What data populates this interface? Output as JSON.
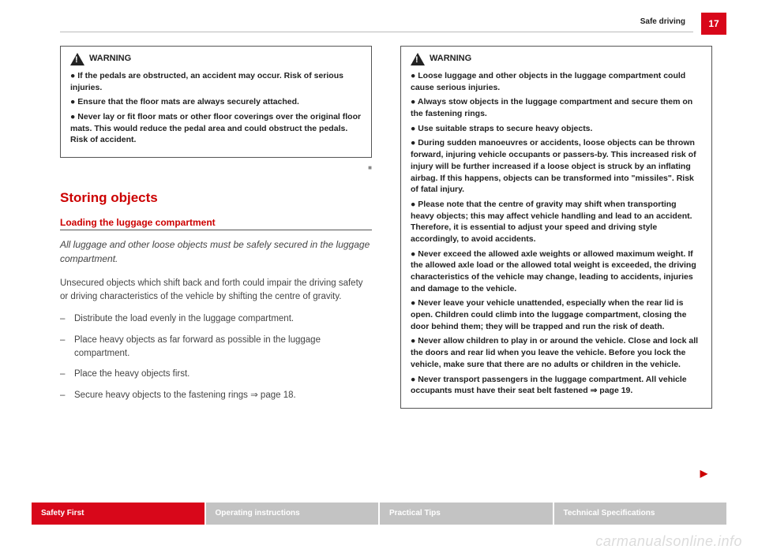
{
  "header": {
    "section": "Safe driving",
    "page": "17"
  },
  "leftColumn": {
    "warning": {
      "label": "WARNING",
      "bullets": [
        "If the pedals are obstructed, an accident may occur. Risk of serious injuries.",
        "Ensure that the floor mats are always securely attached.",
        "Never lay or fit floor mats or other floor coverings over the original floor mats. This would reduce the pedal area and could obstruct the pedals. Risk of accident."
      ]
    },
    "sectionTitle": "Storing objects",
    "subTitle": "Loading the luggage compartment",
    "intro": "All luggage and other loose objects must be safely secured in the luggage compartment.",
    "bodyText": "Unsecured objects which shift back and forth could impair the driving safety or driving characteristics of the vehicle by shifting the centre of gravity.",
    "dashes": [
      "Distribute the load evenly in the luggage compartment.",
      "Place heavy objects as far forward as possible in the luggage compartment.",
      "Place the heavy objects first.",
      "Secure heavy objects to the fastening rings ⇒ page 18."
    ]
  },
  "rightColumn": {
    "warning": {
      "label": "WARNING",
      "bullets": [
        "Loose luggage and other objects in the luggage compartment could cause serious injuries.",
        "Always stow objects in the luggage compartment and secure them on the fastening rings.",
        "Use suitable straps to secure heavy objects.",
        "During sudden manoeuvres or accidents, loose objects can be thrown forward, injuring vehicle occupants or passers-by. This increased risk of injury will be further increased if a loose object is struck by an inflating airbag. If this happens, objects can be transformed into \"missiles\". Risk of fatal injury.",
        "Please note that the centre of gravity may shift when transporting heavy objects; this may affect vehicle handling and lead to an accident. Therefore, it is essential to adjust your speed and driving style accordingly, to avoid accidents.",
        "Never exceed the allowed axle weights or allowed maximum weight. If the allowed axle load or the allowed total weight is exceeded, the driving characteristics of the vehicle may change, leading to accidents, injuries and damage to the vehicle.",
        "Never leave your vehicle unattended, especially when the rear lid is open. Children could climb into the luggage compartment, closing the door behind them; they will be trapped and run the risk of death.",
        "Never allow children to play in or around the vehicle. Close and lock all the doors and rear lid when you leave the vehicle. Before you lock the vehicle, make sure that there are no adults or children in the vehicle.",
        "Never transport passengers in the luggage compartment. All vehicle occupants must have their seat belt fastened ⇒ page 19."
      ]
    }
  },
  "footer": {
    "tabs": [
      "Safety First",
      "Operating instructions",
      "Practical Tips",
      "Technical Specifications"
    ]
  },
  "watermark": "carmanualsonline.info"
}
